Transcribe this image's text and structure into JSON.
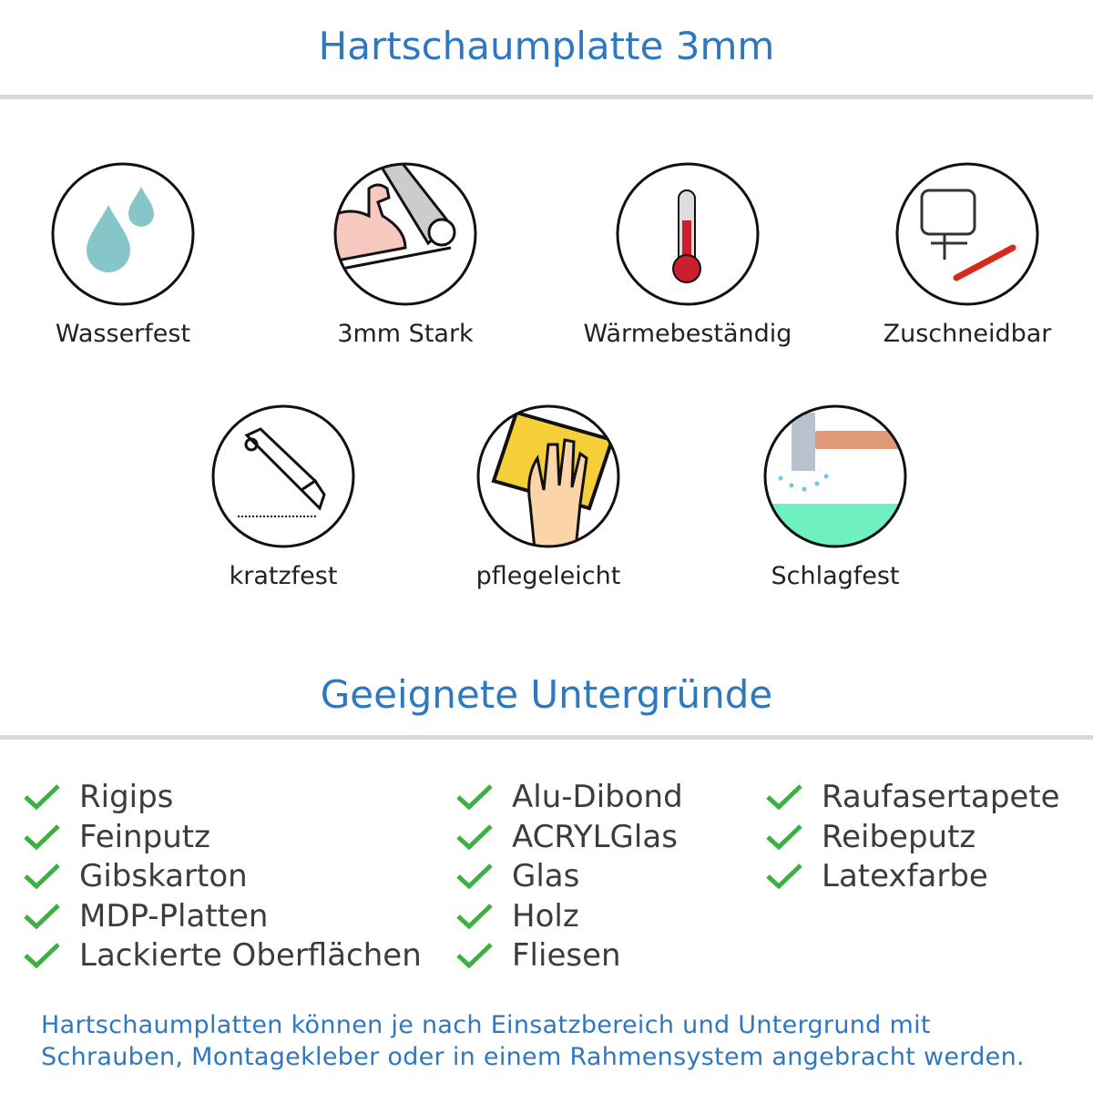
{
  "header": {
    "title": "Hartschaumplatte 3mm"
  },
  "features": [
    {
      "label": "Wasserfest",
      "icon": "water-drops-icon"
    },
    {
      "label": "3mm Stark",
      "icon": "strong-arm-icon"
    },
    {
      "label": "Wärmebeständig",
      "icon": "thermometer-icon"
    },
    {
      "label": "Zuschneidbar",
      "icon": "jigsaw-cutter-icon"
    },
    {
      "label": "kratzfest",
      "icon": "cutter-knife-icon"
    },
    {
      "label": "pflegeleicht",
      "icon": "cleaning-sponge-icon"
    },
    {
      "label": "Schlagfest",
      "icon": "hammer-icon"
    }
  ],
  "surfaces": {
    "title": "Geeignete Untergründe",
    "columns": [
      [
        "Rigips",
        "Feinputz",
        "Gibskarton",
        "MDP-Platten",
        "Lackierte Oberflächen"
      ],
      [
        "Alu-Dibond",
        "ACRYLGlas",
        "Glas",
        "Holz",
        "Fliesen"
      ],
      [
        "Raufasertapete",
        "Reibeputz",
        "Latexfarbe"
      ]
    ],
    "check_color": "#3cb043"
  },
  "footer": {
    "lines": [
      "Hartschaumplatten können je nach Einsatzbereich und Untergrund mit",
      "Schrauben, Montagekleber oder in einem Rahmensystem angebracht werden."
    ]
  },
  "colors": {
    "accent": "#2f78bf",
    "divider": "#d9d9d9"
  }
}
